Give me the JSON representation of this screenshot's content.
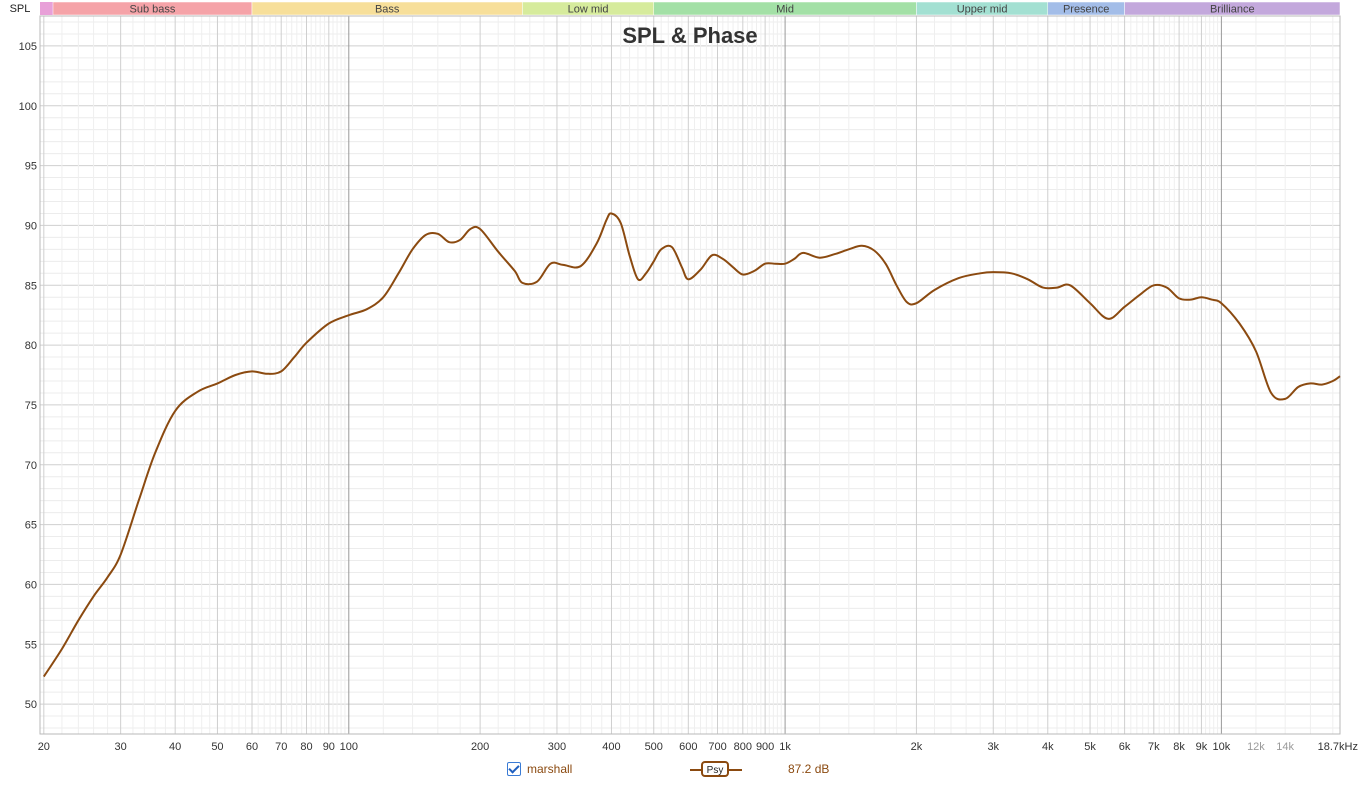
{
  "chart_data": {
    "type": "line",
    "title": "SPL & Phase",
    "ylabel": "SPL",
    "xunit": "Hz",
    "xscale": "log",
    "xlim": [
      19.6,
      18700
    ],
    "ylim": [
      47.5,
      107.5
    ],
    "yticks": [
      50,
      55,
      60,
      65,
      70,
      75,
      80,
      85,
      90,
      95,
      100,
      105
    ],
    "xticks": [
      {
        "value": 20,
        "label": "20"
      },
      {
        "value": 30,
        "label": "30"
      },
      {
        "value": 40,
        "label": "40"
      },
      {
        "value": 50,
        "label": "50"
      },
      {
        "value": 60,
        "label": "60"
      },
      {
        "value": 70,
        "label": "70"
      },
      {
        "value": 80,
        "label": "80"
      },
      {
        "value": 90,
        "label": "90"
      },
      {
        "value": 100,
        "label": "100"
      },
      {
        "value": 200,
        "label": "200"
      },
      {
        "value": 300,
        "label": "300"
      },
      {
        "value": 400,
        "label": "400"
      },
      {
        "value": 500,
        "label": "500"
      },
      {
        "value": 600,
        "label": "600"
      },
      {
        "value": 700,
        "label": "700"
      },
      {
        "value": 800,
        "label": "800"
      },
      {
        "value": 900,
        "label": "900"
      },
      {
        "value": 1000,
        "label": "1k"
      },
      {
        "value": 2000,
        "label": "2k"
      },
      {
        "value": 3000,
        "label": "3k"
      },
      {
        "value": 4000,
        "label": "4k"
      },
      {
        "value": 5000,
        "label": "5k"
      },
      {
        "value": 6000,
        "label": "6k"
      },
      {
        "value": 7000,
        "label": "7k"
      },
      {
        "value": 8000,
        "label": "8k"
      },
      {
        "value": 9000,
        "label": "9k"
      },
      {
        "value": 10000,
        "label": "10k"
      },
      {
        "value": 12000,
        "label": "12k",
        "muted": true
      },
      {
        "value": 14000,
        "label": "14k",
        "muted": true
      },
      {
        "value": 18700,
        "label": "18.7kHz"
      }
    ],
    "bands": [
      {
        "label": "Sub bass",
        "from": 19.6,
        "to": 60,
        "color": "#f5a3a8"
      },
      {
        "label": "Bass",
        "from": 60,
        "to": 250,
        "color": "#f7df9a"
      },
      {
        "label": "Low mid",
        "from": 250,
        "to": 500,
        "color": "#d6eb9c"
      },
      {
        "label": "Mid",
        "from": 500,
        "to": 2000,
        "color": "#a3e0a6"
      },
      {
        "label": "Upper mid",
        "from": 2000,
        "to": 4000,
        "color": "#a3e0d2"
      },
      {
        "label": "Presence",
        "from": 4000,
        "to": 6000,
        "color": "#a3bde8"
      },
      {
        "label": "Brilliance",
        "from": 6000,
        "to": 18700,
        "color": "#c3a8dc"
      }
    ],
    "series": [
      {
        "name": "marshall",
        "color": "#8b4a10",
        "x": [
          20,
          22,
          24,
          26,
          28,
          30,
          33,
          36,
          40,
          45,
          50,
          55,
          60,
          65,
          70,
          75,
          80,
          90,
          100,
          110,
          120,
          130,
          140,
          150,
          160,
          170,
          180,
          190,
          200,
          220,
          240,
          250,
          270,
          290,
          310,
          340,
          370,
          390,
          400,
          420,
          440,
          460,
          480,
          500,
          520,
          550,
          580,
          600,
          640,
          680,
          720,
          760,
          800,
          850,
          900,
          950,
          1000,
          1050,
          1100,
          1200,
          1300,
          1400,
          1500,
          1600,
          1700,
          1800,
          1900,
          2000,
          2200,
          2500,
          2800,
          3000,
          3300,
          3600,
          3900,
          4200,
          4500,
          5000,
          5500,
          6000,
          6500,
          7000,
          7500,
          8000,
          8500,
          9000,
          9500,
          10000,
          11000,
          12000,
          13000,
          14000,
          15000,
          16000,
          17000,
          18000,
          18700
        ],
        "y": [
          52.3,
          54.6,
          57.0,
          59.0,
          60.6,
          62.5,
          67.0,
          71.0,
          74.5,
          76.1,
          76.8,
          77.5,
          77.8,
          77.6,
          77.8,
          79.0,
          80.2,
          81.8,
          82.5,
          83.0,
          84.0,
          86.0,
          88.0,
          89.2,
          89.3,
          88.6,
          88.8,
          89.7,
          89.7,
          87.8,
          86.2,
          85.2,
          85.3,
          86.8,
          86.7,
          86.6,
          88.5,
          90.5,
          91.0,
          90.2,
          87.5,
          85.5,
          86.0,
          87.0,
          88.0,
          88.2,
          86.5,
          85.5,
          86.3,
          87.5,
          87.2,
          86.5,
          85.9,
          86.2,
          86.8,
          86.8,
          86.8,
          87.2,
          87.7,
          87.3,
          87.6,
          88.0,
          88.3,
          87.9,
          86.8,
          85.0,
          83.6,
          83.5,
          84.6,
          85.6,
          86.0,
          86.1,
          86.0,
          85.5,
          84.8,
          84.8,
          85.0,
          83.5,
          82.2,
          83.2,
          84.2,
          85.0,
          84.8,
          83.9,
          83.8,
          84.0,
          83.8,
          83.5,
          81.8,
          79.5,
          76.0,
          75.5,
          76.5,
          76.8,
          76.7,
          77.0,
          77.4
        ]
      }
    ],
    "legend": {
      "checked": true,
      "item": "marshall",
      "smoothing_label": "Psy",
      "value_text": "87.2 dB"
    }
  }
}
